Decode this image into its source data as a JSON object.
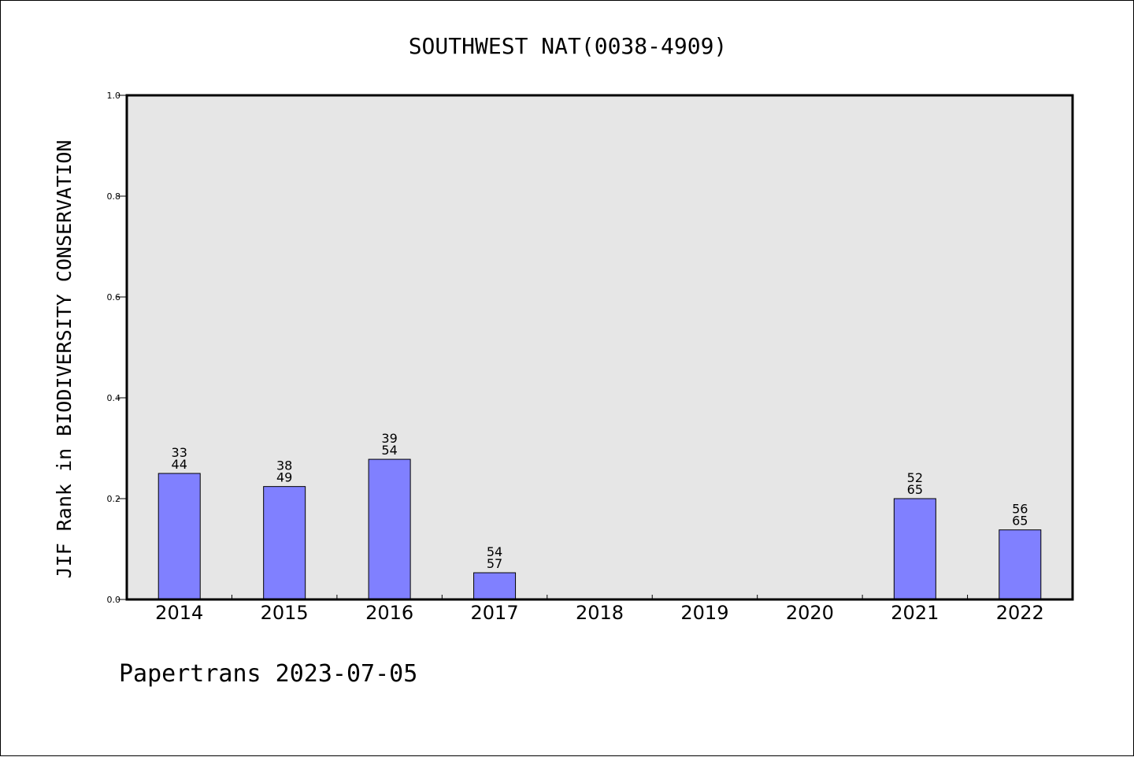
{
  "chart_data": {
    "type": "bar",
    "title": "SOUTHWEST NAT(0038-4909)",
    "xlabel": "",
    "ylabel": "JIF Rank in BIODIVERSITY CONSERVATION",
    "ylim": [
      0.0,
      1.0
    ],
    "y_ticks": [
      "0.0",
      "0.2",
      "0.4",
      "0.6",
      "0.8",
      "1.0"
    ],
    "categories": [
      "2014",
      "2015",
      "2016",
      "2017",
      "2018",
      "2019",
      "2020",
      "2021",
      "2022"
    ],
    "values": [
      0.25,
      0.224,
      0.278,
      0.053,
      null,
      null,
      null,
      0.2,
      0.138
    ],
    "ranks": [
      "33",
      "38",
      "39",
      "54",
      null,
      null,
      null,
      "52",
      "56"
    ],
    "totals": [
      "44",
      "49",
      "54",
      "57",
      null,
      null,
      null,
      "65",
      "65"
    ],
    "grid": false,
    "legend": "none",
    "colors": {
      "bar_fill": "#8080ff",
      "bar_stroke": "#000000",
      "plot_background": "#e6e6e6"
    }
  },
  "footer": {
    "text": "Papertrans 2023-07-05"
  }
}
